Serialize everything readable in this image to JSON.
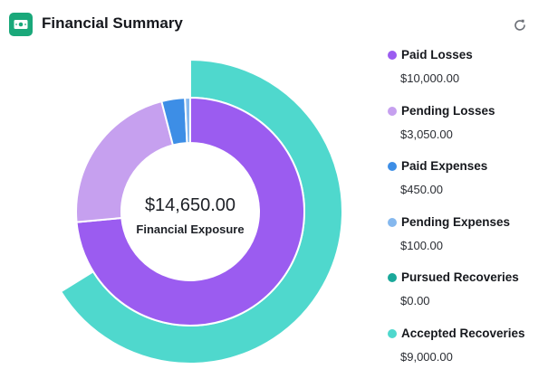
{
  "header": {
    "title": "Financial Summary",
    "app_icon": "money-icon",
    "refresh_icon": "refresh-icon"
  },
  "center": {
    "value": "$14,650.00",
    "label": "Financial Exposure"
  },
  "colors": {
    "paid_losses": "#9b5cf0",
    "pending_losses": "#c6a0ef",
    "paid_expenses": "#3d8ee6",
    "pending_expenses": "#85b8ee",
    "pursued_recoveries": "#1aa89a",
    "accepted_recoveries": "#4fd8cd",
    "brand": "#1aa87a"
  },
  "legend": [
    {
      "name": "Paid Losses",
      "value": "$10,000.00",
      "color": "#9b5cf0"
    },
    {
      "name": "Pending Losses",
      "value": "$3,050.00",
      "color": "#c6a0ef"
    },
    {
      "name": "Paid Expenses",
      "value": "$450.00",
      "color": "#3d8ee6"
    },
    {
      "name": "Pending Expenses",
      "value": "$100.00",
      "color": "#85b8ee"
    },
    {
      "name": "Pursued Recoveries",
      "value": "$0.00",
      "color": "#1aa89a"
    },
    {
      "name": "Accepted Recoveries",
      "value": "$9,000.00",
      "color": "#4fd8cd"
    }
  ],
  "chart_data": {
    "type": "pie",
    "title": "",
    "inner_ring": {
      "total": 13600,
      "slices": [
        {
          "label": "Paid Losses",
          "value": 10000,
          "color": "#9b5cf0"
        },
        {
          "label": "Pending Losses",
          "value": 3050,
          "color": "#c6a0ef"
        },
        {
          "label": "Paid Expenses",
          "value": 450,
          "color": "#3d8ee6"
        },
        {
          "label": "Pending Expenses",
          "value": 100,
          "color": "#85b8ee"
        }
      ]
    },
    "outer_ring": {
      "total": 13600,
      "slices": [
        {
          "label": "Pursued Recoveries",
          "value": 0,
          "color": "#1aa89a"
        },
        {
          "label": "Accepted Recoveries",
          "value": 9000,
          "color": "#4fd8cd"
        }
      ]
    }
  }
}
